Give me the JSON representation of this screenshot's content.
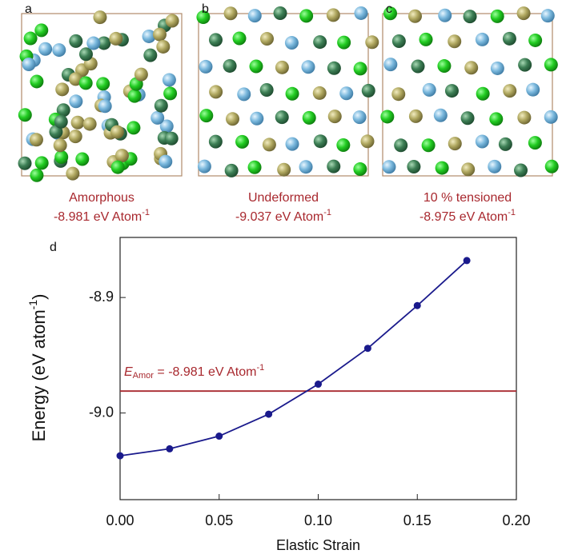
{
  "panels": [
    {
      "label": "a",
      "name": "Amorphous",
      "energy": "-8.981 eV Atom",
      "energy_sup": "-1"
    },
    {
      "label": "b",
      "name": "Undeformed",
      "energy": "-9.037 eV Atom",
      "energy_sup": "-1"
    },
    {
      "label": "c",
      "name": "10 % tensioned",
      "energy": "-8.975 eV Atom",
      "energy_sup": "-1"
    }
  ],
  "chart_data": {
    "type": "line",
    "panel_label": "d",
    "x": [
      0,
      0.025,
      0.05,
      0.075,
      0.1,
      0.125,
      0.15,
      0.175
    ],
    "series": [
      {
        "color": "#1a1a8c",
        "values": [
          -9.037,
          -9.031,
          -9.02,
          -9.001,
          -8.975,
          -8.944,
          -8.907,
          -8.868
        ]
      }
    ],
    "xlim": [
      0,
      0.2
    ],
    "ylim": [
      -9.075,
      -8.848
    ],
    "xticks": [
      {
        "value": 0,
        "label": "0.00"
      },
      0.05,
      {
        "value": 0.1,
        "label": "0.10"
      },
      0.15,
      {
        "value": 0.2,
        "label": "0.20"
      }
    ],
    "yticks": [
      {
        "value": -9.0,
        "label": "-9.0"
      },
      -8.9
    ],
    "xlabel": "Elastic Strain",
    "ylabel": "Energy (eV atom",
    "ylabel_sup": "-1",
    "ylabel_end": ")",
    "reference_line": {
      "value": -8.981,
      "color": "#a8282e",
      "label_italic": "E",
      "label_sub": "Amor",
      "label_rest": " = -8.981 eV Atom",
      "label_sup": "-1"
    }
  }
}
